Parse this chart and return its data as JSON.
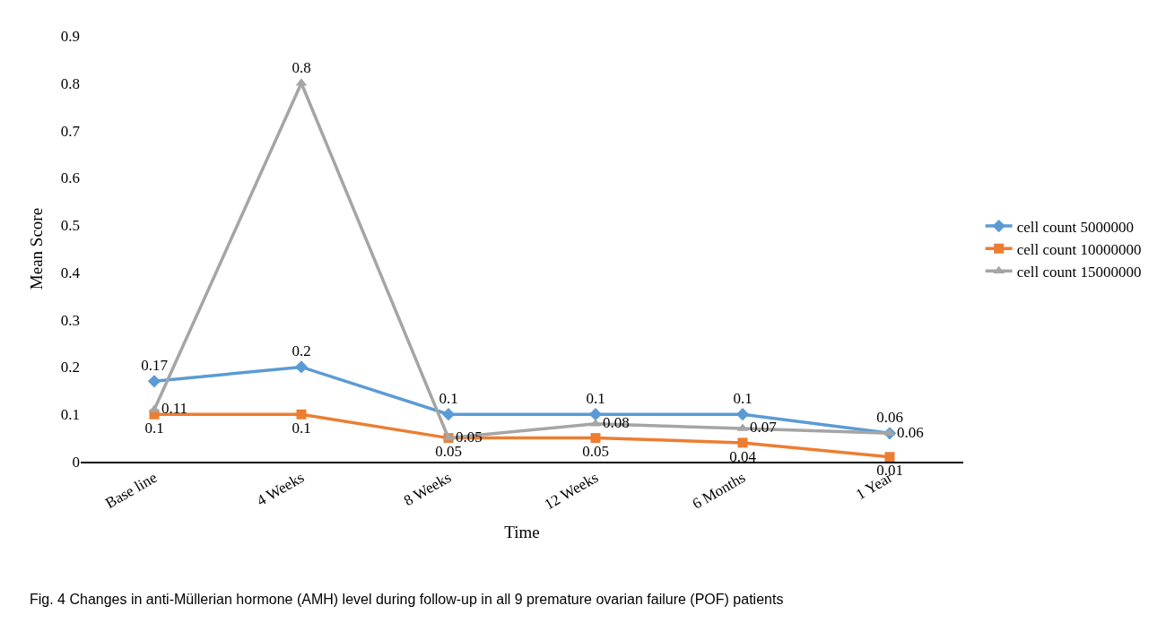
{
  "chart_data": {
    "type": "line",
    "xlabel": "Time",
    "ylabel": "Mean Score",
    "categories": [
      "Base line",
      "4 Weeks",
      "8 Weeks",
      "12 Weeks",
      "6 Months",
      "1 Year"
    ],
    "series": [
      {
        "name": "cell count 5000000",
        "color": "#5b9bd5",
        "marker": "diamond",
        "values": [
          0.17,
          0.2,
          0.1,
          0.1,
          0.1,
          0.06
        ]
      },
      {
        "name": "cell count 10000000",
        "color": "#ed7d31",
        "marker": "square",
        "values": [
          0.1,
          0.1,
          0.05,
          0.05,
          0.04,
          0.01
        ]
      },
      {
        "name": "cell count 15000000",
        "color": "#a5a5a5",
        "marker": "triangle",
        "values": [
          0.11,
          0.8,
          0.05,
          0.08,
          0.07,
          0.06
        ]
      }
    ],
    "ylim": [
      0,
      0.9
    ],
    "yticks": [
      0,
      0.1,
      0.2,
      0.3,
      0.4,
      0.5,
      0.6,
      0.7,
      0.8,
      0.9
    ],
    "data_labels": true,
    "legend": "right",
    "annotations": [
      "Fig. 4 Changes in anti-Müllerian hormone (AMH) level during follow-up in all 9 premature ovarian failure (POF) patients"
    ]
  }
}
